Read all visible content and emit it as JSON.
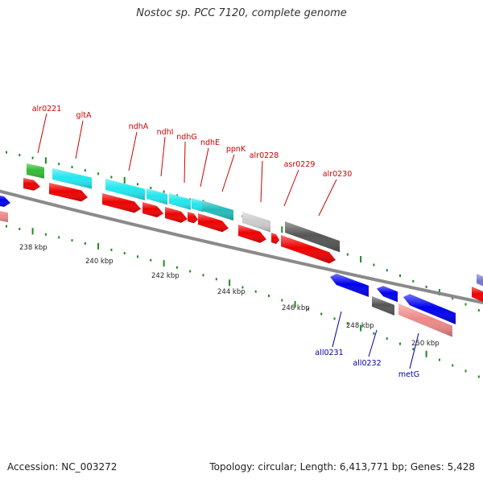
{
  "title": "Nostoc sp. PCC 7120, complete genome",
  "footer": {
    "accession": "Accession: NC_003272",
    "summary": "Topology: circular; Length: 6,413,771 bp; Genes: 5,428"
  },
  "colors": {
    "backbone": "#8a8a8a",
    "tick": "#1f8a1f",
    "forward_label": "#cc0000",
    "reverse_label": "#0000aa",
    "cds": "#ee0000",
    "green": "#33bb33",
    "cyan": "#22e6ee",
    "teal": "#22bbbb",
    "light_gray": "#cccccc",
    "dark_gray": "#555555",
    "blue": "#0000ee",
    "pink": "#ee8888",
    "purple": "#7777cc"
  },
  "ruler": [
    {
      "label": "238 kbp"
    },
    {
      "label": "240 kbp"
    },
    {
      "label": "242 kbp"
    },
    {
      "label": "244 kbp"
    },
    {
      "label": "246 kbp"
    },
    {
      "label": "248 kbp"
    },
    {
      "label": "250 kbp"
    }
  ],
  "forward_labels": [
    "alr0221",
    "gltA",
    "ndhA",
    "ndhI",
    "ndhG",
    "ndhE",
    "ppnK",
    "alr0228",
    "asr0229",
    "alr0230"
  ],
  "reverse_labels": [
    "all0231",
    "all0232",
    "metG"
  ]
}
